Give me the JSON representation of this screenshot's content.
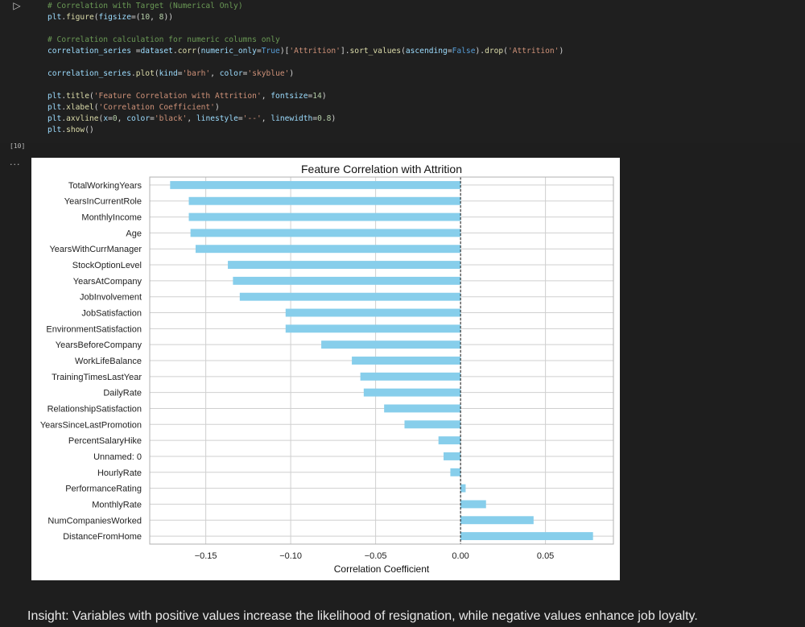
{
  "cell": {
    "run_icon": "▷",
    "exec_count": "[10]",
    "output_menu": "...",
    "code_lines": [
      [
        {
          "t": "# Correlation with Target (Numerical Only)",
          "c": "cm"
        }
      ],
      [
        {
          "t": "plt",
          "c": "id"
        },
        {
          "t": ".",
          "c": "pl"
        },
        {
          "t": "figure",
          "c": "fn"
        },
        {
          "t": "(",
          "c": "pl"
        },
        {
          "t": "figsize",
          "c": "id"
        },
        {
          "t": "=(",
          "c": "pl"
        },
        {
          "t": "10",
          "c": "nm"
        },
        {
          "t": ", ",
          "c": "pl"
        },
        {
          "t": "8",
          "c": "nm"
        },
        {
          "t": "))",
          "c": "pl"
        }
      ],
      [],
      [
        {
          "t": "# Correlation calculation for numeric columns only",
          "c": "cm"
        }
      ],
      [
        {
          "t": "correlation_series",
          "c": "id"
        },
        {
          "t": " =",
          "c": "pl"
        },
        {
          "t": "dataset",
          "c": "id"
        },
        {
          "t": ".",
          "c": "pl"
        },
        {
          "t": "corr",
          "c": "fn"
        },
        {
          "t": "(",
          "c": "pl"
        },
        {
          "t": "numeric_only",
          "c": "id"
        },
        {
          "t": "=",
          "c": "pl"
        },
        {
          "t": "True",
          "c": "kw"
        },
        {
          "t": ")[",
          "c": "pl"
        },
        {
          "t": "'Attrition'",
          "c": "st"
        },
        {
          "t": "].",
          "c": "pl"
        },
        {
          "t": "sort_values",
          "c": "fn"
        },
        {
          "t": "(",
          "c": "pl"
        },
        {
          "t": "ascending",
          "c": "id"
        },
        {
          "t": "=",
          "c": "pl"
        },
        {
          "t": "False",
          "c": "kw"
        },
        {
          "t": ").",
          "c": "pl"
        },
        {
          "t": "drop",
          "c": "fn"
        },
        {
          "t": "(",
          "c": "pl"
        },
        {
          "t": "'Attrition'",
          "c": "st"
        },
        {
          "t": ")",
          "c": "pl"
        }
      ],
      [],
      [
        {
          "t": "correlation_series",
          "c": "id"
        },
        {
          "t": ".",
          "c": "pl"
        },
        {
          "t": "plot",
          "c": "fn"
        },
        {
          "t": "(",
          "c": "pl"
        },
        {
          "t": "kind",
          "c": "id"
        },
        {
          "t": "=",
          "c": "pl"
        },
        {
          "t": "'barh'",
          "c": "st"
        },
        {
          "t": ", ",
          "c": "pl"
        },
        {
          "t": "color",
          "c": "id"
        },
        {
          "t": "=",
          "c": "pl"
        },
        {
          "t": "'skyblue'",
          "c": "st"
        },
        {
          "t": ")",
          "c": "pl"
        }
      ],
      [],
      [
        {
          "t": "plt",
          "c": "id"
        },
        {
          "t": ".",
          "c": "pl"
        },
        {
          "t": "title",
          "c": "fn"
        },
        {
          "t": "(",
          "c": "pl"
        },
        {
          "t": "'Feature Correlation with Attrition'",
          "c": "st"
        },
        {
          "t": ", ",
          "c": "pl"
        },
        {
          "t": "fontsize",
          "c": "id"
        },
        {
          "t": "=",
          "c": "pl"
        },
        {
          "t": "14",
          "c": "nm"
        },
        {
          "t": ")",
          "c": "pl"
        }
      ],
      [
        {
          "t": "plt",
          "c": "id"
        },
        {
          "t": ".",
          "c": "pl"
        },
        {
          "t": "xlabel",
          "c": "fn"
        },
        {
          "t": "(",
          "c": "pl"
        },
        {
          "t": "'Correlation Coefficient'",
          "c": "st"
        },
        {
          "t": ")",
          "c": "pl"
        }
      ],
      [
        {
          "t": "plt",
          "c": "id"
        },
        {
          "t": ".",
          "c": "pl"
        },
        {
          "t": "axvline",
          "c": "fn"
        },
        {
          "t": "(",
          "c": "pl"
        },
        {
          "t": "x",
          "c": "id"
        },
        {
          "t": "=",
          "c": "pl"
        },
        {
          "t": "0",
          "c": "nm"
        },
        {
          "t": ", ",
          "c": "pl"
        },
        {
          "t": "color",
          "c": "id"
        },
        {
          "t": "=",
          "c": "pl"
        },
        {
          "t": "'black'",
          "c": "st"
        },
        {
          "t": ", ",
          "c": "pl"
        },
        {
          "t": "linestyle",
          "c": "id"
        },
        {
          "t": "=",
          "c": "pl"
        },
        {
          "t": "'--'",
          "c": "st"
        },
        {
          "t": ", ",
          "c": "pl"
        },
        {
          "t": "linewidth",
          "c": "id"
        },
        {
          "t": "=",
          "c": "pl"
        },
        {
          "t": "0.8",
          "c": "nm"
        },
        {
          "t": ")",
          "c": "pl"
        }
      ],
      [
        {
          "t": "plt",
          "c": "id"
        },
        {
          "t": ".",
          "c": "pl"
        },
        {
          "t": "show",
          "c": "fn"
        },
        {
          "t": "()",
          "c": "pl"
        }
      ]
    ]
  },
  "chart_data": {
    "type": "bar",
    "orientation": "horizontal",
    "title": "Feature Correlation with Attrition",
    "xlabel": "Correlation Coefficient",
    "ylabel": "",
    "xlim": [
      -0.183,
      0.09
    ],
    "xticks": [
      -0.15,
      -0.1,
      -0.05,
      0.0,
      0.05
    ],
    "xtick_labels": [
      "−0.15",
      "−0.10",
      "−0.05",
      "0.00",
      "0.05"
    ],
    "grid": true,
    "reference_line": {
      "x": 0,
      "style": "dashed",
      "color": "#000000"
    },
    "bar_color": "#87ceeb",
    "categories": [
      "TotalWorkingYears",
      "YearsInCurrentRole",
      "MonthlyIncome",
      "Age",
      "YearsWithCurrManager",
      "StockOptionLevel",
      "YearsAtCompany",
      "JobInvolvement",
      "JobSatisfaction",
      "EnvironmentSatisfaction",
      "YearsBeforeCompany",
      "WorkLifeBalance",
      "TrainingTimesLastYear",
      "DailyRate",
      "RelationshipSatisfaction",
      "YearsSinceLastPromotion",
      "PercentSalaryHike",
      "Unnamed: 0",
      "HourlyRate",
      "PerformanceRating",
      "MonthlyRate",
      "NumCompaniesWorked",
      "DistanceFromHome"
    ],
    "values": [
      -0.171,
      -0.16,
      -0.16,
      -0.159,
      -0.156,
      -0.137,
      -0.134,
      -0.13,
      -0.103,
      -0.103,
      -0.082,
      -0.064,
      -0.059,
      -0.057,
      -0.045,
      -0.033,
      -0.013,
      -0.01,
      -0.006,
      0.003,
      0.015,
      0.043,
      0.078
    ]
  },
  "insight": "Insight: Variables with positive values increase the likelihood of resignation, while negative values enhance job loyalty."
}
